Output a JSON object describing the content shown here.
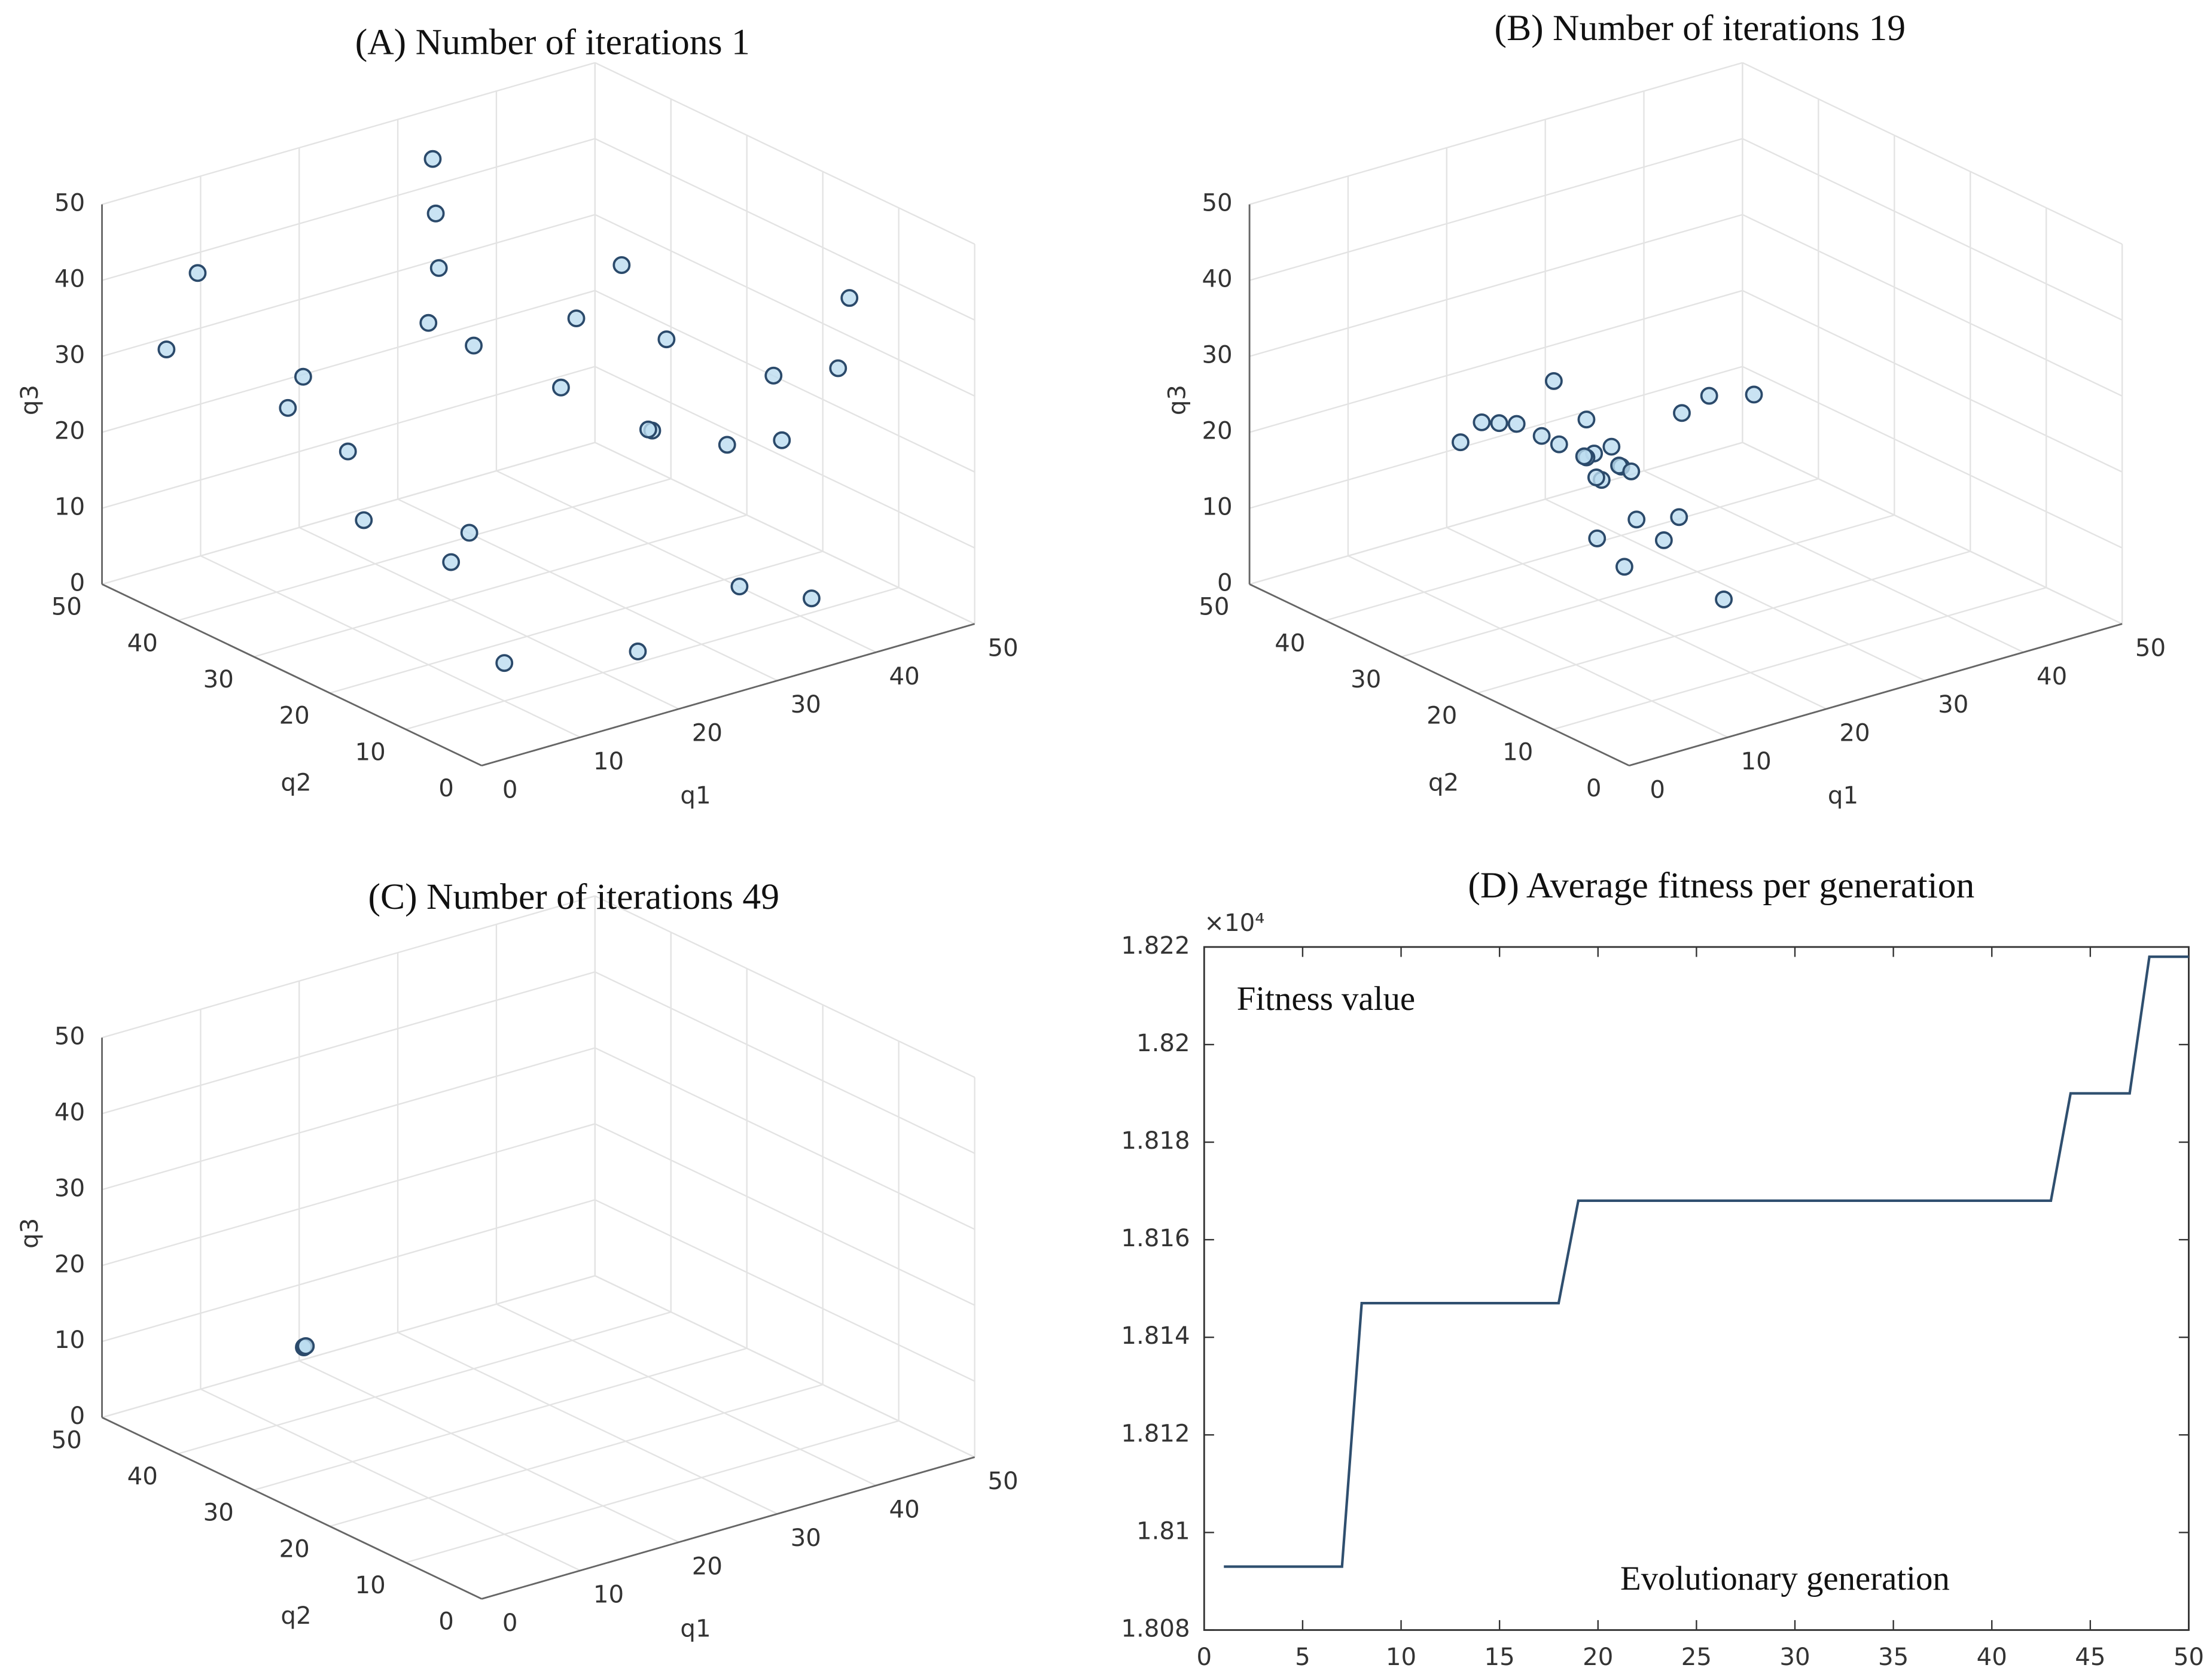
{
  "chart_data": [
    {
      "type": "scatter3d",
      "title": "(A) Number of iterations 1",
      "xlabel": "q1",
      "ylabel": "q2",
      "zlabel": "q3",
      "xlim": [
        0,
        50
      ],
      "ylim": [
        0,
        50
      ],
      "zlim": [
        0,
        50
      ],
      "xticks": [
        0,
        10,
        20,
        30,
        40,
        50
      ],
      "yticks": [
        0,
        10,
        20,
        30,
        40,
        50
      ],
      "zticks": [
        0,
        10,
        20,
        30,
        40,
        50
      ],
      "grid": true,
      "color": "#2b4a6b",
      "x": [
        5,
        2,
        5,
        8,
        10,
        25,
        30,
        35,
        40,
        45,
        42,
        45,
        38,
        40,
        35,
        30,
        28,
        30,
        32,
        20,
        15,
        18,
        10,
        22,
        48,
        45,
        15,
        25
      ],
      "y": [
        48,
        40,
        30,
        28,
        20,
        10,
        5,
        2,
        5,
        10,
        15,
        20,
        25,
        30,
        35,
        40,
        42,
        45,
        48,
        30,
        35,
        25,
        10,
        8,
        30,
        40,
        45,
        20
      ],
      "z": [
        30,
        45,
        35,
        25,
        45,
        30,
        10,
        8,
        35,
        40,
        20,
        25,
        30,
        15,
        20,
        25,
        35,
        40,
        45,
        5,
        10,
        12,
        5,
        3,
        10,
        30,
        20,
        40
      ]
    },
    {
      "type": "scatter3d",
      "title": "(B) Number of iterations 19",
      "xlabel": "q1",
      "ylabel": "q2",
      "zlabel": "q3",
      "xlim": [
        0,
        50
      ],
      "ylim": [
        0,
        50
      ],
      "zlim": [
        0,
        50
      ],
      "xticks": [
        0,
        10,
        20,
        30,
        40,
        50
      ],
      "yticks": [
        0,
        10,
        20,
        30,
        40,
        50
      ],
      "zticks": [
        0,
        10,
        20,
        30,
        40,
        50
      ],
      "grid": true,
      "color": "#2b4a6b",
      "x": [
        18,
        19,
        18,
        17,
        20,
        16,
        15,
        19,
        21,
        18,
        17,
        14,
        13,
        12,
        20,
        16,
        22,
        18,
        6,
        40,
        42,
        45,
        25,
        22,
        18,
        19
      ],
      "y": [
        28,
        27,
        29,
        28,
        27,
        30,
        31,
        26,
        27,
        29,
        32,
        33,
        34,
        35,
        25,
        25,
        24,
        27,
        30,
        45,
        44,
        42,
        20,
        22,
        24,
        29
      ],
      "z": [
        21,
        22,
        20,
        21,
        19,
        22,
        23,
        20,
        18,
        25,
        29,
        24,
        24,
        24,
        13,
        12,
        10,
        18,
        26,
        10,
        12,
        12,
        3,
        14,
        8,
        17
      ]
    },
    {
      "type": "scatter3d",
      "title": "(C) Number of iterations 49",
      "xlabel": "q1",
      "ylabel": "q2",
      "zlabel": "q3",
      "xlim": [
        0,
        50
      ],
      "ylim": [
        0,
        50
      ],
      "zlim": [
        0,
        50
      ],
      "xticks": [
        0,
        10,
        20,
        30,
        40,
        50
      ],
      "yticks": [
        0,
        10,
        20,
        30,
        40,
        50
      ],
      "zticks": [
        0,
        10,
        20,
        30,
        40,
        50
      ],
      "grid": true,
      "color": "#2b4a6b",
      "x": [
        12,
        12.1,
        12.2
      ],
      "y": [
        39,
        39.1,
        39
      ],
      "z": [
        10,
        10,
        10.1
      ]
    },
    {
      "type": "line",
      "title": "(D) Average fitness per generation",
      "xlabel": "Evolutionary generation",
      "ylabel": "Fitness value",
      "y_exponent_label": "×10⁴",
      "xlim": [
        0,
        50
      ],
      "ylim": [
        1.808,
        1.822
      ],
      "xticks": [
        0,
        5,
        10,
        15,
        20,
        25,
        30,
        35,
        40,
        45,
        50
      ],
      "yticks": [
        1.808,
        1.81,
        1.812,
        1.814,
        1.816,
        1.818,
        1.82,
        1.822
      ],
      "color": "#2f4f6f",
      "x": [
        1,
        2,
        3,
        4,
        5,
        6,
        7,
        8,
        9,
        10,
        11,
        12,
        13,
        14,
        15,
        16,
        17,
        18,
        19,
        20,
        21,
        22,
        23,
        24,
        25,
        26,
        27,
        28,
        29,
        30,
        31,
        32,
        33,
        34,
        35,
        36,
        37,
        38,
        39,
        40,
        41,
        42,
        43,
        44,
        45,
        46,
        47,
        48,
        49,
        50
      ],
      "values": [
        1.8093,
        1.8093,
        1.8093,
        1.8093,
        1.8093,
        1.8093,
        1.8093,
        1.8147,
        1.8147,
        1.8147,
        1.8147,
        1.8147,
        1.8147,
        1.8147,
        1.8147,
        1.8147,
        1.8147,
        1.8147,
        1.8168,
        1.8168,
        1.8168,
        1.8168,
        1.8168,
        1.8168,
        1.8168,
        1.8168,
        1.8168,
        1.8168,
        1.8168,
        1.8168,
        1.8168,
        1.8168,
        1.8168,
        1.8168,
        1.8168,
        1.8168,
        1.8168,
        1.8168,
        1.8168,
        1.8168,
        1.8168,
        1.8168,
        1.8168,
        1.819,
        1.819,
        1.819,
        1.819,
        1.8218,
        1.8218,
        1.8218
      ]
    }
  ]
}
